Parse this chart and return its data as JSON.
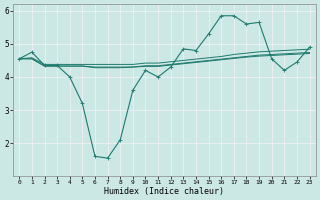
{
  "title": "",
  "xlabel": "Humidex (Indice chaleur)",
  "xlim": [
    -0.5,
    23.5
  ],
  "ylim": [
    1,
    6.2
  ],
  "yticks": [
    2,
    3,
    4,
    5,
    6
  ],
  "xticks": [
    0,
    1,
    2,
    3,
    4,
    5,
    6,
    7,
    8,
    9,
    10,
    11,
    12,
    13,
    14,
    15,
    16,
    17,
    18,
    19,
    20,
    21,
    22,
    23
  ],
  "background_color": "#cce8e4",
  "line_color": "#1e7a6e",
  "grid_color": "#f0f0f0",
  "line1": {
    "x": [
      0,
      1,
      2,
      3,
      4,
      5,
      6,
      7,
      8,
      9,
      10,
      11,
      12,
      13,
      14,
      15,
      16,
      17,
      18,
      19,
      20,
      21,
      22,
      23
    ],
    "y": [
      4.55,
      4.75,
      4.35,
      4.35,
      4.0,
      3.2,
      1.6,
      1.55,
      2.1,
      3.6,
      4.2,
      4.0,
      4.3,
      4.85,
      4.8,
      5.3,
      5.85,
      5.85,
      5.6,
      5.65,
      4.55,
      4.2,
      4.45,
      4.9
    ]
  },
  "line2": {
    "x": [
      0,
      1,
      2,
      3,
      4,
      5,
      6,
      7,
      8,
      9,
      10,
      11,
      12,
      13,
      14,
      15,
      16,
      17,
      18,
      19,
      20,
      21,
      22,
      23
    ],
    "y": [
      4.55,
      4.58,
      4.38,
      4.38,
      4.38,
      4.38,
      4.38,
      4.38,
      4.38,
      4.38,
      4.42,
      4.42,
      4.46,
      4.5,
      4.54,
      4.58,
      4.62,
      4.68,
      4.72,
      4.76,
      4.78,
      4.8,
      4.82,
      4.84
    ]
  },
  "line3": {
    "x": [
      0,
      1,
      2,
      3,
      4,
      5,
      6,
      7,
      8,
      9,
      10,
      11,
      12,
      13,
      14,
      15,
      16,
      17,
      18,
      19,
      20,
      21,
      22,
      23
    ],
    "y": [
      4.55,
      4.55,
      4.33,
      4.33,
      4.33,
      4.33,
      4.3,
      4.3,
      4.3,
      4.3,
      4.34,
      4.34,
      4.38,
      4.42,
      4.46,
      4.5,
      4.54,
      4.58,
      4.62,
      4.66,
      4.68,
      4.7,
      4.72,
      4.74
    ]
  },
  "line4": {
    "x": [
      0,
      1,
      2,
      3,
      4,
      5,
      6,
      7,
      8,
      9,
      10,
      11,
      12,
      13,
      14,
      15,
      16,
      17,
      18,
      19,
      20,
      21,
      22,
      23
    ],
    "y": [
      4.55,
      4.55,
      4.33,
      4.33,
      4.33,
      4.33,
      4.28,
      4.28,
      4.28,
      4.3,
      4.32,
      4.32,
      4.36,
      4.4,
      4.44,
      4.48,
      4.52,
      4.56,
      4.6,
      4.63,
      4.65,
      4.67,
      4.69,
      4.71
    ]
  }
}
